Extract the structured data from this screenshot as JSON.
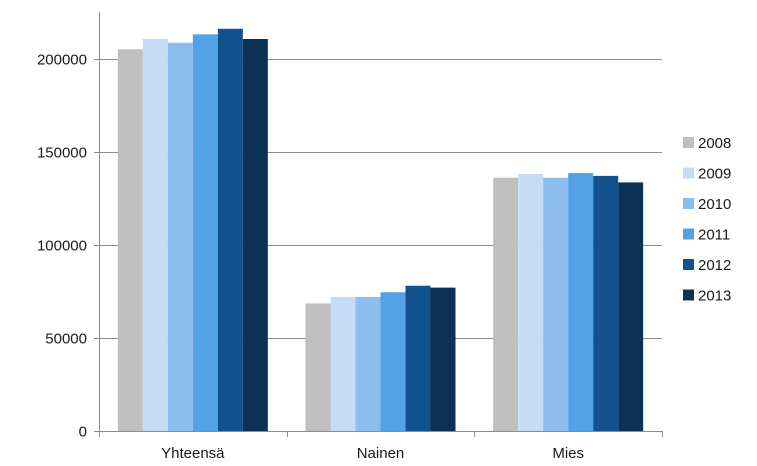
{
  "chart_data": {
    "type": "bar",
    "title": "",
    "xlabel": "",
    "ylabel": "",
    "categories": [
      "Yhteensä",
      "Nainen",
      "Mies"
    ],
    "ylim": [
      0,
      225000
    ],
    "yticks": [
      0,
      50000,
      100000,
      150000,
      200000
    ],
    "ytick_labels": [
      "0",
      "50000",
      "100000",
      "150000",
      "200000"
    ],
    "grid": true,
    "legend_position": "right",
    "series": [
      {
        "name": "2008",
        "color": "#bfbfbf",
        "values": [
          205000,
          68500,
          136000
        ]
      },
      {
        "name": "2009",
        "color": "#c6dcf4",
        "values": [
          210500,
          72000,
          138000
        ]
      },
      {
        "name": "2010",
        "color": "#8dbdec",
        "values": [
          208500,
          72000,
          136000
        ]
      },
      {
        "name": "2011",
        "color": "#54a2e6",
        "values": [
          213000,
          74500,
          138500
        ]
      },
      {
        "name": "2012",
        "color": "#13508e",
        "values": [
          216000,
          78000,
          137000
        ]
      },
      {
        "name": "2013",
        "color": "#0c3157",
        "values": [
          210500,
          77000,
          133500
        ]
      }
    ]
  }
}
